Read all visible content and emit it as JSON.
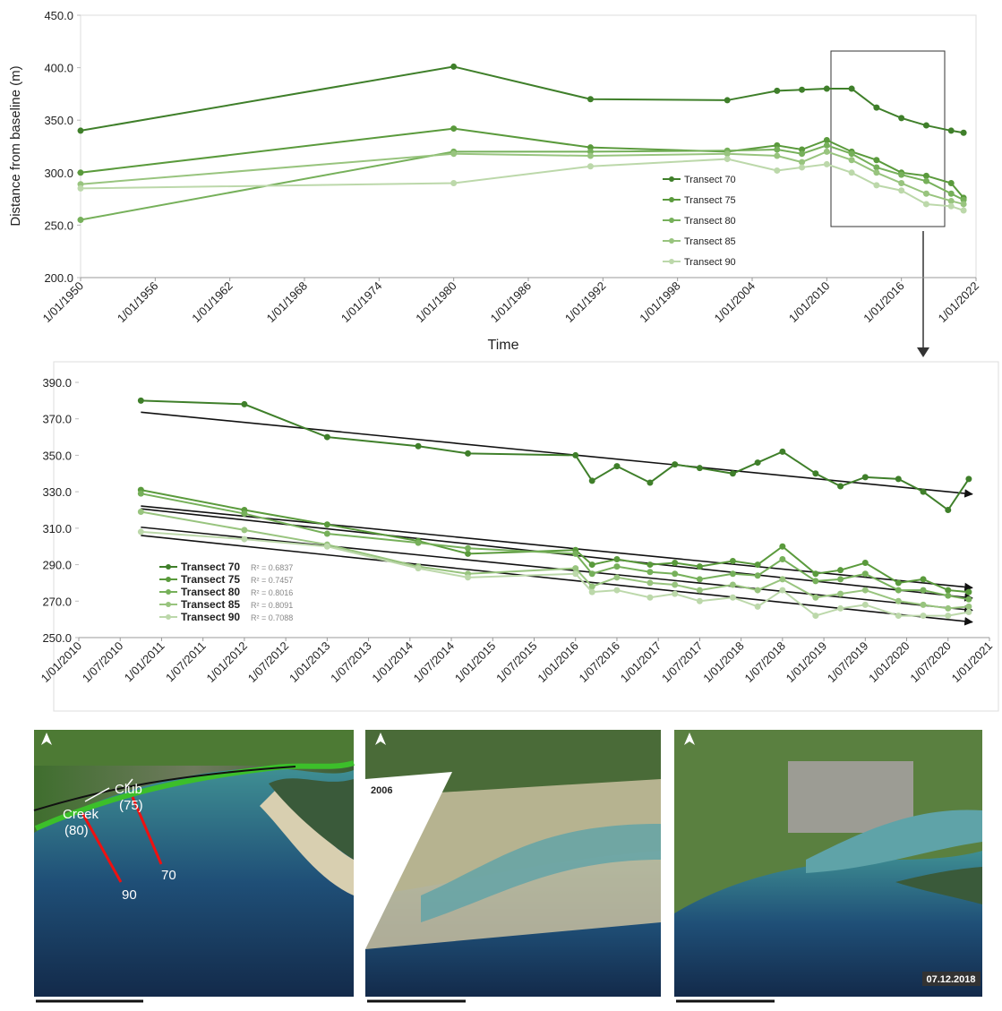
{
  "chart_data": [
    {
      "type": "line",
      "y_label": "Distance from baseline (m)",
      "x_label": "Time",
      "x": [
        1950,
        1980,
        1991,
        2002,
        2006,
        2008,
        2010,
        2012,
        2014,
        2016,
        2018,
        2020,
        2021
      ],
      "series": [
        {
          "name": "Transect 70",
          "color": "#3f7f2a",
          "values": [
            340,
            401,
            370,
            369,
            378,
            379,
            380,
            380,
            362,
            352,
            345,
            340,
            338
          ]
        },
        {
          "name": "Transect 75",
          "color": "#5a9a3c",
          "values": [
            300,
            342,
            324,
            320,
            326,
            322,
            331,
            320,
            312,
            300,
            297,
            290,
            276
          ]
        },
        {
          "name": "Transect 80",
          "color": "#76b05a",
          "values": [
            255,
            320,
            320,
            321,
            322,
            318,
            326,
            318,
            305,
            298,
            292,
            280,
            274
          ]
        },
        {
          "name": "Transect 85",
          "color": "#98c47e",
          "values": [
            289,
            318,
            316,
            318,
            316,
            310,
            320,
            312,
            300,
            290,
            280,
            273,
            270
          ]
        },
        {
          "name": "Transect 90",
          "color": "#bcd8aa",
          "values": [
            285,
            290,
            306,
            313,
            302,
            305,
            308,
            300,
            288,
            283,
            270,
            268,
            264
          ]
        }
      ],
      "xlim": [
        1950,
        2022
      ],
      "xticks": [
        {
          "value": 1950,
          "label": "1/01/1950"
        },
        {
          "value": 1956,
          "label": "1/01/1956"
        },
        {
          "value": 1962,
          "label": "1/01/1962"
        },
        {
          "value": 1968,
          "label": "1/01/1968"
        },
        {
          "value": 1974,
          "label": "1/01/1974"
        },
        {
          "value": 1980,
          "label": "1/01/1980"
        },
        {
          "value": 1986,
          "label": "1/01/1986"
        },
        {
          "value": 1992,
          "label": "1/01/1992"
        },
        {
          "value": 1998,
          "label": "1/01/1998"
        },
        {
          "value": 2004,
          "label": "1/01/2004"
        },
        {
          "value": 2010,
          "label": "1/01/2010"
        },
        {
          "value": 2016,
          "label": "1/01/2016"
        },
        {
          "value": 2022,
          "label": "1/01/2022"
        }
      ],
      "ylim": [
        200,
        450
      ],
      "yticks": [
        {
          "value": 200,
          "label": "200.0"
        },
        {
          "value": 250,
          "label": "250.0"
        },
        {
          "value": 300,
          "label": "300.0"
        },
        {
          "value": 350,
          "label": "350.0"
        },
        {
          "value": 400,
          "label": "400.0"
        },
        {
          "value": 450,
          "label": "450.0"
        }
      ],
      "grid": false,
      "trendline": false
    },
    {
      "type": "line",
      "x": [
        2010.75,
        2012.0,
        2013.0,
        2014.1,
        2014.7,
        2016.0,
        2016.2,
        2016.5,
        2016.9,
        2017.2,
        2017.5,
        2017.9,
        2018.2,
        2018.5,
        2018.9,
        2019.2,
        2019.5,
        2019.9,
        2020.2,
        2020.5,
        2020.75
      ],
      "series": [
        {
          "name": "Transect 70",
          "color": "#3f7f2a",
          "r2_label": "R² = 0.6837",
          "values": [
            380,
            378,
            360,
            355,
            351,
            350,
            336,
            344,
            335,
            345,
            343,
            340,
            346,
            352,
            340,
            333,
            338,
            337,
            330,
            320,
            337
          ]
        },
        {
          "name": "Transect 75",
          "color": "#5a9a3c",
          "r2_label": "R² = 0.7457",
          "values": [
            331,
            320,
            312,
            303,
            296,
            298,
            290,
            293,
            290,
            291,
            289,
            292,
            290,
            300,
            285,
            287,
            291,
            280,
            282,
            276,
            275
          ]
        },
        {
          "name": "Transect 80",
          "color": "#76b05a",
          "r2_label": "R² = 0.8016",
          "values": [
            329,
            318,
            307,
            302,
            299,
            296,
            285,
            289,
            286,
            285,
            282,
            285,
            284,
            293,
            281,
            282,
            285,
            276,
            276,
            273,
            271
          ]
        },
        {
          "name": "Transect 85",
          "color": "#98c47e",
          "r2_label": "R² = 0.8091",
          "values": [
            319,
            309,
            301,
            289,
            285,
            288,
            278,
            283,
            280,
            279,
            276,
            279,
            276,
            282,
            272,
            274,
            276,
            270,
            268,
            266,
            267
          ]
        },
        {
          "name": "Transect 90",
          "color": "#bcd8aa",
          "r2_label": "R² = 0.7088",
          "values": [
            308,
            304,
            300,
            288,
            283,
            285,
            275,
            276,
            272,
            274,
            270,
            272,
            267,
            276,
            262,
            266,
            268,
            262,
            262,
            262,
            264
          ]
        }
      ],
      "xlim": [
        2010,
        2021
      ],
      "xticks": [
        {
          "value": 2010,
          "label": "1/01/2010"
        },
        {
          "value": 2010.5,
          "label": "1/07/2010"
        },
        {
          "value": 2011,
          "label": "1/01/2011"
        },
        {
          "value": 2011.5,
          "label": "1/07/2011"
        },
        {
          "value": 2012,
          "label": "1/01/2012"
        },
        {
          "value": 2012.5,
          "label": "1/07/2012"
        },
        {
          "value": 2013,
          "label": "1/01/2013"
        },
        {
          "value": 2013.5,
          "label": "1/07/2013"
        },
        {
          "value": 2014,
          "label": "1/01/2014"
        },
        {
          "value": 2014.5,
          "label": "1/07/2014"
        },
        {
          "value": 2015,
          "label": "1/01/2015"
        },
        {
          "value": 2015.5,
          "label": "1/07/2015"
        },
        {
          "value": 2016,
          "label": "1/01/2016"
        },
        {
          "value": 2016.5,
          "label": "1/07/2016"
        },
        {
          "value": 2017,
          "label": "1/01/2017"
        },
        {
          "value": 2017.5,
          "label": "1/07/2017"
        },
        {
          "value": 2018,
          "label": "1/01/2018"
        },
        {
          "value": 2018.5,
          "label": "1/07/2018"
        },
        {
          "value": 2019,
          "label": "1/01/2019"
        },
        {
          "value": 2019.5,
          "label": "1/07/2019"
        },
        {
          "value": 2020,
          "label": "1/01/2020"
        },
        {
          "value": 2020.5,
          "label": "1/07/2020"
        },
        {
          "value": 2021,
          "label": "1/01/2021"
        }
      ],
      "ylim": [
        250,
        390
      ],
      "yticks": [
        {
          "value": 250,
          "label": "250.0"
        },
        {
          "value": 270,
          "label": "270.0"
        },
        {
          "value": 290,
          "label": "290.0"
        },
        {
          "value": 310,
          "label": "310.0"
        },
        {
          "value": 330,
          "label": "330.0"
        },
        {
          "value": 350,
          "label": "350.0"
        },
        {
          "value": 370,
          "label": "370.0"
        },
        {
          "value": 390,
          "label": "390.0"
        }
      ],
      "grid": false,
      "trendline": true
    }
  ],
  "maps": [
    {
      "labels": [
        "Creek",
        "(80)",
        "Club",
        "(75)",
        "90",
        "70"
      ]
    },
    {
      "labels": [
        "2006"
      ]
    },
    {
      "labels": [
        "07.12.2018"
      ]
    }
  ]
}
